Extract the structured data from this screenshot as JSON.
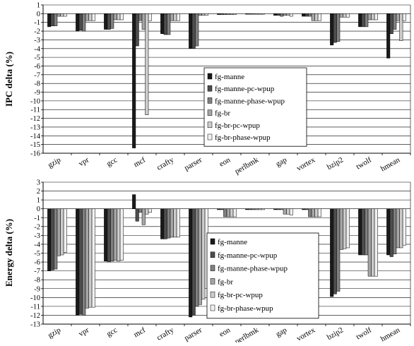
{
  "chart_data": [
    {
      "type": "bar",
      "ylabel": "IPC delta (%)",
      "ylim": [
        -16,
        1
      ],
      "yticks": [
        1,
        0,
        -1,
        -2,
        -3,
        -4,
        -5,
        -6,
        -7,
        -8,
        -9,
        -10,
        -11,
        -12,
        -13,
        -14,
        -15,
        -16
      ],
      "categories": [
        "gzip",
        "vpr",
        "gcc",
        "mcf",
        "crafty",
        "parser",
        "eon",
        "perlbmk",
        "gap",
        "vortex",
        "bzip2",
        "twolf",
        "hmean"
      ],
      "legend_position": "center-right",
      "grid": "horizontal",
      "series": [
        {
          "name": "fg-manne",
          "color": "#1a1a1a",
          "values": [
            -1.5,
            -2.0,
            -1.8,
            -15.4,
            -2.3,
            -4.0,
            -0.1,
            -0.05,
            -0.2,
            -0.3,
            -3.6,
            -1.5,
            -5.1
          ]
        },
        {
          "name": "fg-manne-pc-wpup",
          "color": "#4d4d4d",
          "values": [
            -1.4,
            -1.9,
            -1.8,
            -3.7,
            -2.4,
            -4.0,
            -0.1,
            -0.05,
            -0.2,
            -0.3,
            -3.3,
            -1.5,
            -2.3
          ]
        },
        {
          "name": "fg-manne-phase-wpup",
          "color": "#808080",
          "values": [
            -1.4,
            -2.0,
            -1.7,
            -0.8,
            -2.4,
            -3.7,
            -0.1,
            -0.05,
            -0.3,
            -0.3,
            -3.2,
            -1.5,
            -1.8
          ]
        },
        {
          "name": "fg-br",
          "color": "#a6a6a6",
          "values": [
            -0.3,
            -0.8,
            -0.7,
            -1.8,
            -0.8,
            -0.2,
            -0.1,
            -0.05,
            -0.2,
            -0.8,
            -0.4,
            -0.7,
            -0.8
          ]
        },
        {
          "name": "fg-br-pc-wpup",
          "color": "#cccccc",
          "values": [
            -0.3,
            -0.8,
            -0.7,
            -11.6,
            -0.8,
            -0.2,
            -0.1,
            -0.05,
            -0.2,
            -0.8,
            -0.4,
            -0.7,
            -3.1
          ]
        },
        {
          "name": "fg-br-phase-wpup",
          "color": "#f0f0f0",
          "values": [
            -0.3,
            -0.8,
            -0.7,
            -0.8,
            -0.8,
            -0.2,
            -0.1,
            -0.05,
            -0.3,
            -0.8,
            -0.4,
            -0.7,
            -0.8
          ]
        }
      ]
    },
    {
      "type": "bar",
      "ylabel": "Energy delta (%)",
      "ylim": [
        -13,
        3
      ],
      "yticks": [
        3,
        2,
        1,
        0,
        -1,
        -2,
        -3,
        -4,
        -5,
        -6,
        -7,
        -8,
        -9,
        -10,
        -11,
        -12,
        -13
      ],
      "categories": [
        "gzip",
        "vpr",
        "gcc",
        "mcf",
        "crafty",
        "parser",
        "eon",
        "perlbmk",
        "gap",
        "vortex",
        "bzip2",
        "twolf",
        "hmean"
      ],
      "legend_position": "bottom-center",
      "grid": "horizontal",
      "series": [
        {
          "name": "fg-manne",
          "color": "#1a1a1a",
          "values": [
            -7.0,
            -12.0,
            -5.9,
            1.6,
            -3.4,
            -12.2,
            -0.1,
            -0.1,
            -0.1,
            -0.1,
            -9.9,
            -5.2,
            -5.2
          ]
        },
        {
          "name": "fg-manne-pc-wpup",
          "color": "#4d4d4d",
          "values": [
            -6.9,
            -11.9,
            -6.0,
            -1.4,
            -3.4,
            -12.0,
            -0.1,
            -0.1,
            -0.1,
            -0.1,
            -9.6,
            -5.2,
            -5.4
          ]
        },
        {
          "name": "fg-manne-phase-wpup",
          "color": "#808080",
          "values": [
            -6.8,
            -12.0,
            -5.9,
            -0.4,
            -3.3,
            -11.0,
            -0.9,
            -0.1,
            -0.1,
            -0.9,
            -9.3,
            -5.2,
            -5.1
          ]
        },
        {
          "name": "fg-br",
          "color": "#a6a6a6",
          "values": [
            -5.3,
            -11.2,
            -5.8,
            -1.8,
            -3.2,
            -10.8,
            -0.9,
            -0.1,
            -0.6,
            -0.9,
            -4.6,
            -7.6,
            -4.4
          ]
        },
        {
          "name": "fg-br-pc-wpup",
          "color": "#cccccc",
          "values": [
            -5.2,
            -11.1,
            -5.9,
            -0.6,
            -3.2,
            -10.2,
            -0.9,
            -0.1,
            -0.6,
            -0.9,
            -4.5,
            -7.6,
            -4.4
          ]
        },
        {
          "name": "fg-br-phase-wpup",
          "color": "#f0f0f0",
          "values": [
            -4.9,
            -11.1,
            -5.8,
            -0.4,
            -3.2,
            -9.0,
            -0.9,
            -0.1,
            -0.7,
            -0.9,
            -4.4,
            -7.6,
            -4.1
          ]
        }
      ]
    }
  ]
}
